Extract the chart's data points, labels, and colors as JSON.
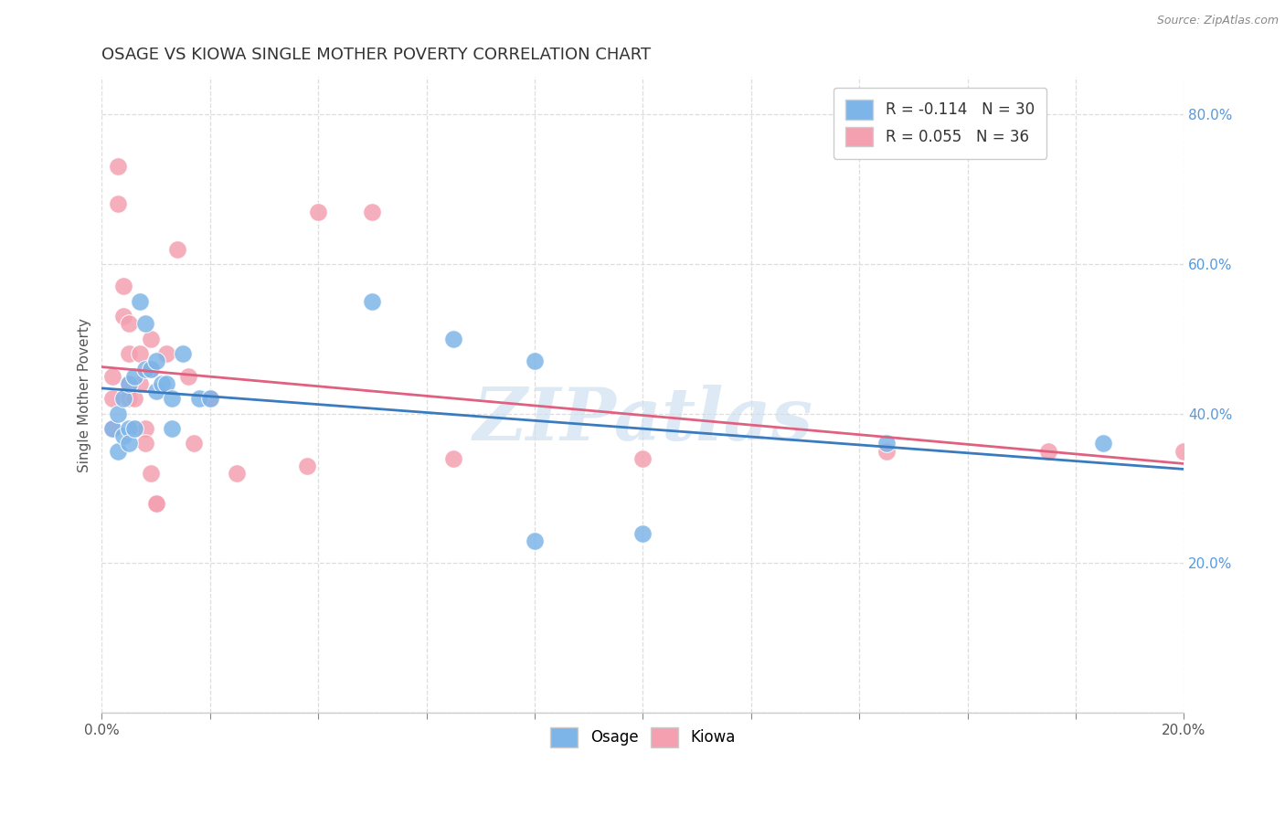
{
  "title": "OSAGE VS KIOWA SINGLE MOTHER POVERTY CORRELATION CHART",
  "source": "Source: ZipAtlas.com",
  "ylabel": "Single Mother Poverty",
  "xlim": [
    0.0,
    0.2
  ],
  "ylim": [
    0.0,
    0.85
  ],
  "xticks": [
    0.0,
    0.02,
    0.04,
    0.06,
    0.08,
    0.1,
    0.12,
    0.14,
    0.16,
    0.18,
    0.2
  ],
  "yticks": [
    0.0,
    0.2,
    0.4,
    0.6,
    0.8
  ],
  "osage_color": "#7eb5e8",
  "kiowa_color": "#f4a0b0",
  "osage_line_color": "#3a7bbf",
  "kiowa_line_color": "#e06080",
  "osage_R": -0.114,
  "osage_N": 30,
  "kiowa_R": 0.055,
  "kiowa_N": 36,
  "osage_points": [
    [
      0.002,
      0.38
    ],
    [
      0.003,
      0.35
    ],
    [
      0.003,
      0.4
    ],
    [
      0.004,
      0.42
    ],
    [
      0.004,
      0.37
    ],
    [
      0.005,
      0.38
    ],
    [
      0.005,
      0.36
    ],
    [
      0.005,
      0.44
    ],
    [
      0.006,
      0.38
    ],
    [
      0.006,
      0.45
    ],
    [
      0.007,
      0.55
    ],
    [
      0.008,
      0.52
    ],
    [
      0.008,
      0.46
    ],
    [
      0.009,
      0.46
    ],
    [
      0.01,
      0.47
    ],
    [
      0.01,
      0.43
    ],
    [
      0.011,
      0.44
    ],
    [
      0.012,
      0.44
    ],
    [
      0.013,
      0.42
    ],
    [
      0.013,
      0.38
    ],
    [
      0.015,
      0.48
    ],
    [
      0.018,
      0.42
    ],
    [
      0.02,
      0.42
    ],
    [
      0.05,
      0.55
    ],
    [
      0.065,
      0.5
    ],
    [
      0.08,
      0.47
    ],
    [
      0.08,
      0.23
    ],
    [
      0.1,
      0.24
    ],
    [
      0.145,
      0.36
    ],
    [
      0.185,
      0.36
    ]
  ],
  "kiowa_points": [
    [
      0.002,
      0.45
    ],
    [
      0.002,
      0.42
    ],
    [
      0.002,
      0.38
    ],
    [
      0.003,
      0.73
    ],
    [
      0.003,
      0.68
    ],
    [
      0.004,
      0.57
    ],
    [
      0.004,
      0.53
    ],
    [
      0.005,
      0.52
    ],
    [
      0.005,
      0.48
    ],
    [
      0.005,
      0.44
    ],
    [
      0.005,
      0.42
    ],
    [
      0.006,
      0.42
    ],
    [
      0.006,
      0.38
    ],
    [
      0.007,
      0.48
    ],
    [
      0.007,
      0.44
    ],
    [
      0.008,
      0.38
    ],
    [
      0.008,
      0.36
    ],
    [
      0.009,
      0.5
    ],
    [
      0.009,
      0.46
    ],
    [
      0.009,
      0.32
    ],
    [
      0.01,
      0.28
    ],
    [
      0.01,
      0.28
    ],
    [
      0.012,
      0.48
    ],
    [
      0.014,
      0.62
    ],
    [
      0.016,
      0.45
    ],
    [
      0.017,
      0.36
    ],
    [
      0.02,
      0.42
    ],
    [
      0.025,
      0.32
    ],
    [
      0.038,
      0.33
    ],
    [
      0.04,
      0.67
    ],
    [
      0.05,
      0.67
    ],
    [
      0.065,
      0.34
    ],
    [
      0.1,
      0.34
    ],
    [
      0.145,
      0.35
    ],
    [
      0.175,
      0.35
    ],
    [
      0.2,
      0.35
    ]
  ],
  "watermark": "ZIPatlas",
  "background_color": "#ffffff",
  "grid_color": "#dddddd",
  "title_fontsize": 13,
  "axis_label_fontsize": 11,
  "tick_fontsize": 11,
  "right_tick_color": "#5599dd"
}
